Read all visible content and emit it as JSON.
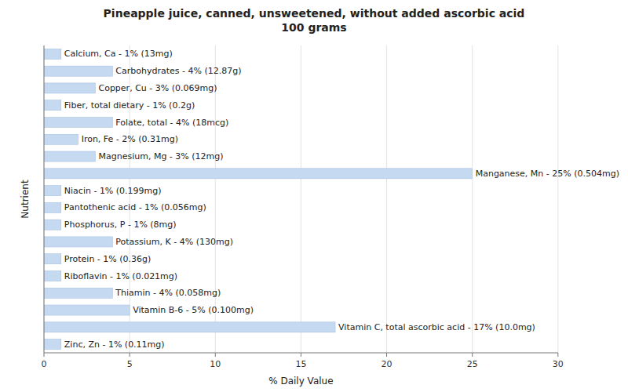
{
  "chart_data": {
    "type": "bar",
    "orientation": "horizontal",
    "title": "Pineapple juice, canned, unsweetened, without added ascorbic acid\n100 grams",
    "xlabel": "% Daily Value",
    "ylabel": "Nutrient",
    "categories": [
      "Calcium, Ca - 1% (13mg)",
      "Carbohydrates - 4% (12.87g)",
      "Copper, Cu - 3% (0.069mg)",
      "Fiber, total dietary - 1% (0.2g)",
      "Folate, total - 4% (18mcg)",
      "Iron, Fe - 2% (0.31mg)",
      "Magnesium, Mg - 3% (12mg)",
      "Manganese, Mn - 25% (0.504mg)",
      "Niacin - 1% (0.199mg)",
      "Pantothenic acid - 1% (0.056mg)",
      "Phosphorus, P - 1% (8mg)",
      "Potassium, K - 4% (130mg)",
      "Protein - 1% (0.36g)",
      "Riboflavin - 1% (0.021mg)",
      "Thiamin - 4% (0.058mg)",
      "Vitamin B-6 - 5% (0.100mg)",
      "Vitamin C, total ascorbic acid - 17% (10.0mg)",
      "Zinc, Zn - 1% (0.11mg)"
    ],
    "values": [
      1,
      4,
      3,
      1,
      4,
      2,
      3,
      25,
      1,
      1,
      1,
      4,
      1,
      1,
      4,
      5,
      17,
      1
    ],
    "color": "#c5d9f1",
    "xlim": [
      0,
      30
    ],
    "xticks": [
      0,
      5,
      10,
      15,
      20,
      25,
      30
    ],
    "grid": true,
    "tick_labels": "x"
  }
}
